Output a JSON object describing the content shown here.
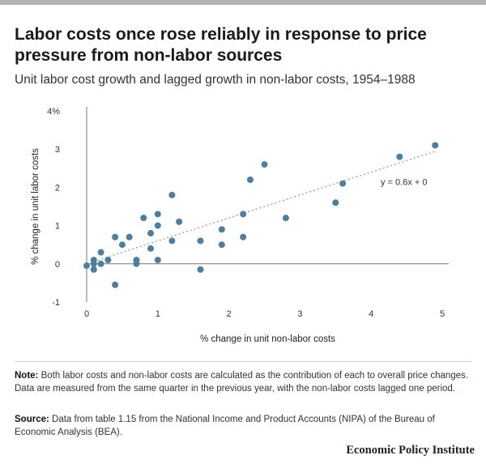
{
  "title": "Labor costs once rose reliably in response to price pressure from non-labor sources",
  "subtitle": "Unit labor cost growth and lagged growth in non-labor costs, 1954–1988",
  "note": {
    "label": "Note:",
    "text": "Both labor costs and non-labor costs are calculated as the contribution of each to overall price changes. Data are measured from the same quarter in the previous year, with the non-labor costs lagged one period."
  },
  "source": {
    "label": "Source:",
    "text": "Data from table 1.15 from the National Income and Product Accounts (NIPA) of the Bureau of Economic Analysis (BEA)."
  },
  "brand": "Economic Policy Institute",
  "colors": {
    "point": "#4a7fa0",
    "trend": "#999999",
    "axis": "#777777"
  },
  "chart_data": {
    "type": "scatter",
    "xlabel": "% change in unit non-labor costs",
    "ylabel": "% change in unit labor costs",
    "xlim": [
      0,
      5
    ],
    "ylim": [
      -1,
      4
    ],
    "x_ticks": [
      "0",
      "1",
      "2",
      "3",
      "4",
      "5"
    ],
    "y_ticks": [
      "-1",
      "0",
      "1",
      "2",
      "3",
      "4%"
    ],
    "grid": false,
    "trendline": {
      "label": "y = 0.6x + 0",
      "slope": 0.6,
      "intercept": 0,
      "x_range": [
        0.1,
        4.9
      ]
    },
    "points": [
      {
        "x": 0.0,
        "y": -0.05
      },
      {
        "x": 0.1,
        "y": 0.1
      },
      {
        "x": 0.1,
        "y": 0.0
      },
      {
        "x": 0.1,
        "y": -0.15
      },
      {
        "x": 0.2,
        "y": 0.3
      },
      {
        "x": 0.2,
        "y": 0.0
      },
      {
        "x": 0.3,
        "y": 0.1
      },
      {
        "x": 0.4,
        "y": 0.7
      },
      {
        "x": 0.4,
        "y": -0.55
      },
      {
        "x": 0.5,
        "y": 0.5
      },
      {
        "x": 0.6,
        "y": 0.7
      },
      {
        "x": 0.7,
        "y": 0.1
      },
      {
        "x": 0.7,
        "y": 0.0
      },
      {
        "x": 0.8,
        "y": 1.2
      },
      {
        "x": 0.9,
        "y": 0.8
      },
      {
        "x": 0.9,
        "y": 0.4
      },
      {
        "x": 1.0,
        "y": 1.3
      },
      {
        "x": 1.0,
        "y": 1.0
      },
      {
        "x": 1.0,
        "y": 0.1
      },
      {
        "x": 1.2,
        "y": 1.8
      },
      {
        "x": 1.2,
        "y": 0.6
      },
      {
        "x": 1.3,
        "y": 1.1
      },
      {
        "x": 1.6,
        "y": 0.6
      },
      {
        "x": 1.6,
        "y": -0.15
      },
      {
        "x": 1.9,
        "y": 0.9
      },
      {
        "x": 1.9,
        "y": 0.5
      },
      {
        "x": 2.2,
        "y": 1.3
      },
      {
        "x": 2.2,
        "y": 0.7
      },
      {
        "x": 2.3,
        "y": 2.2
      },
      {
        "x": 2.5,
        "y": 2.6
      },
      {
        "x": 2.8,
        "y": 1.2
      },
      {
        "x": 3.5,
        "y": 1.6
      },
      {
        "x": 3.6,
        "y": 2.1
      },
      {
        "x": 4.4,
        "y": 2.8
      },
      {
        "x": 4.9,
        "y": 3.1
      }
    ]
  }
}
